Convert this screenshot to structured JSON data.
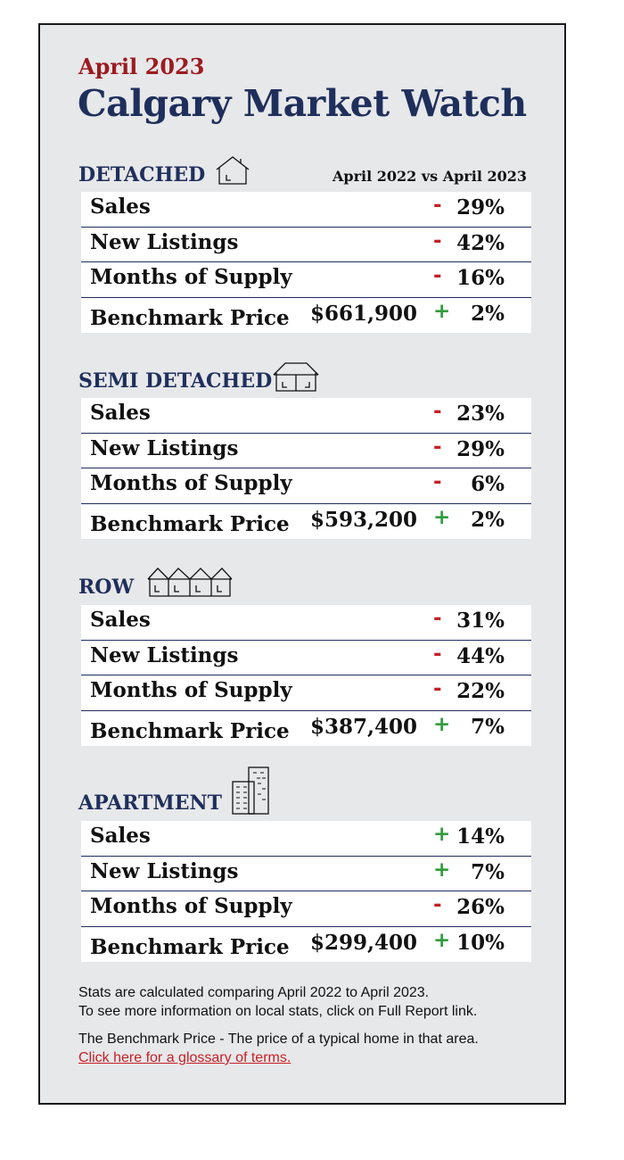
{
  "subtitle": "April 2023",
  "title": "Calgary Market Watch",
  "compare_label": "April 2022 vs April 2023",
  "sections": [
    {
      "heading": "DETACHED",
      "icon": "house-icon",
      "rows": [
        {
          "label": "Sales",
          "sign": "-",
          "pct": "29%"
        },
        {
          "label": "New Listings",
          "sign": "-",
          "pct": "42%"
        },
        {
          "label": "Months of Supply",
          "sign": "-",
          "pct": "16%"
        },
        {
          "label": "Benchmark Price",
          "price": "$661,900",
          "sign": "+",
          "pct": "2%"
        }
      ]
    },
    {
      "heading": "SEMI DETACHED",
      "icon": "semi-detached-icon",
      "rows": [
        {
          "label": "Sales",
          "sign": "-",
          "pct": "23%"
        },
        {
          "label": "New Listings",
          "sign": "-",
          "pct": "29%"
        },
        {
          "label": "Months of Supply",
          "sign": "-",
          "pct": "6%"
        },
        {
          "label": "Benchmark Price",
          "price": "$593,200",
          "sign": "+",
          "pct": "2%"
        }
      ]
    },
    {
      "heading": "ROW",
      "icon": "row-houses-icon",
      "rows": [
        {
          "label": "Sales",
          "sign": "-",
          "pct": "31%"
        },
        {
          "label": "New Listings",
          "sign": "-",
          "pct": "44%"
        },
        {
          "label": "Months of Supply",
          "sign": "-",
          "pct": "22%"
        },
        {
          "label": "Benchmark Price",
          "price": "$387,400",
          "sign": "+",
          "pct": "7%"
        }
      ]
    },
    {
      "heading": "APARTMENT",
      "icon": "apartment-building-icon",
      "rows": [
        {
          "label": "Sales",
          "sign": "+",
          "pct": "14%"
        },
        {
          "label": "New Listings",
          "sign": "+",
          "pct": "7%"
        },
        {
          "label": "Months of Supply",
          "sign": "-",
          "pct": "26%"
        },
        {
          "label": "Benchmark Price",
          "price": "$299,400",
          "sign": "+",
          "pct": "10%"
        }
      ]
    }
  ],
  "notes": {
    "line1": "Stats are calculated comparing April 2022 to April 2023.",
    "line2": "To see more information on local stats, click on Full Report link.",
    "line3": "The Benchmark Price - The price of a typical home in that area.",
    "glossary_link": "Click here for a glossary of terms."
  },
  "colors": {
    "negative": "#c52026",
    "positive": "#2f9d3a",
    "heading": "#1f2f5c",
    "subtitle": "#9b1c20"
  }
}
